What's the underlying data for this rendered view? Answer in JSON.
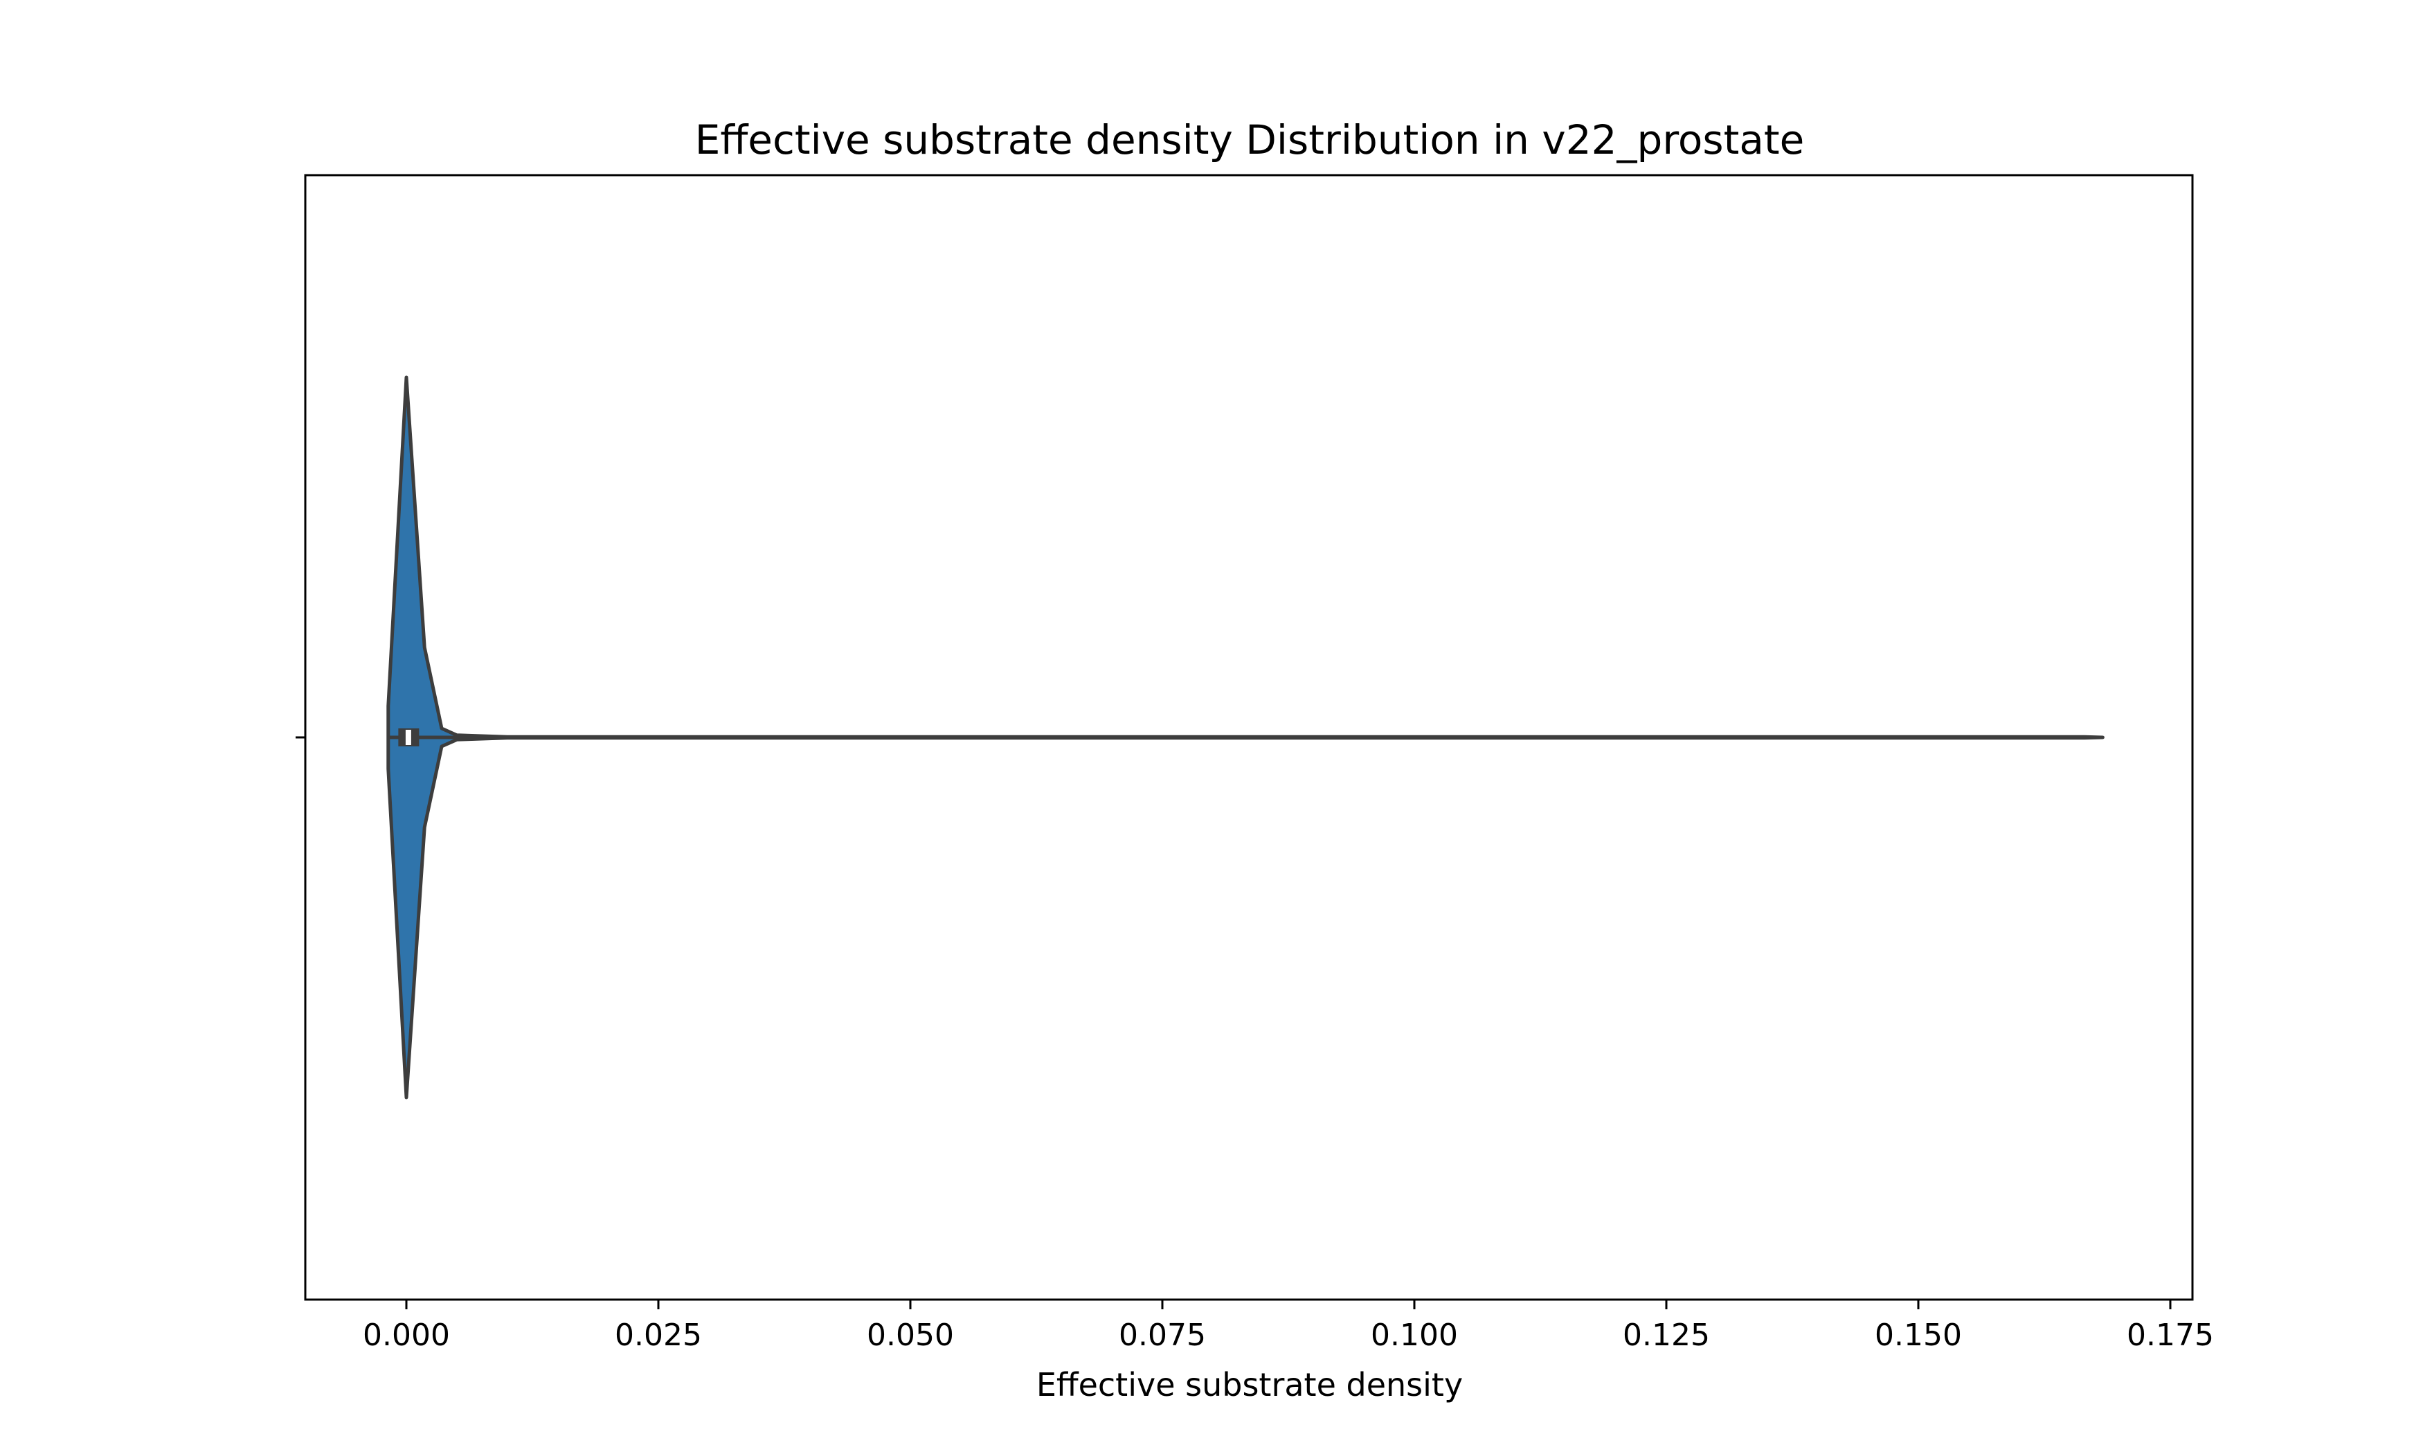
{
  "chart_data": {
    "type": "violin",
    "title": "Effective substrate density Distribution in v22_prostate",
    "xlabel": "Effective substrate density",
    "ylabel": "",
    "xlim": [
      -0.01,
      0.177
    ],
    "xticks": [
      0.0,
      0.025,
      0.05,
      0.075,
      0.1,
      0.125,
      0.15,
      0.175
    ],
    "xtick_labels": [
      "0.000",
      "0.025",
      "0.050",
      "0.075",
      "0.100",
      "0.125",
      "0.150",
      "0.175"
    ],
    "grid": false,
    "violin_color": "#2f74ab",
    "edge_color": "#3d3d3d",
    "density_profile": [
      {
        "x": 0.0,
        "w": 0.8
      },
      {
        "x": -0.0018,
        "w": 0.07
      },
      {
        "x": 0.0018,
        "w": 0.2
      },
      {
        "x": 0.0035,
        "w": 0.02
      },
      {
        "x": 0.005,
        "w": 0.005
      },
      {
        "x": 0.01,
        "w": 0.001
      },
      {
        "x": 0.1665,
        "w": 0.001
      },
      {
        "x": 0.1683,
        "w": 0.0
      }
    ],
    "summary": {
      "min": -0.0018,
      "q1": -0.0008,
      "median": 0.0002,
      "q3": 0.0012,
      "max": 0.1683
    }
  }
}
